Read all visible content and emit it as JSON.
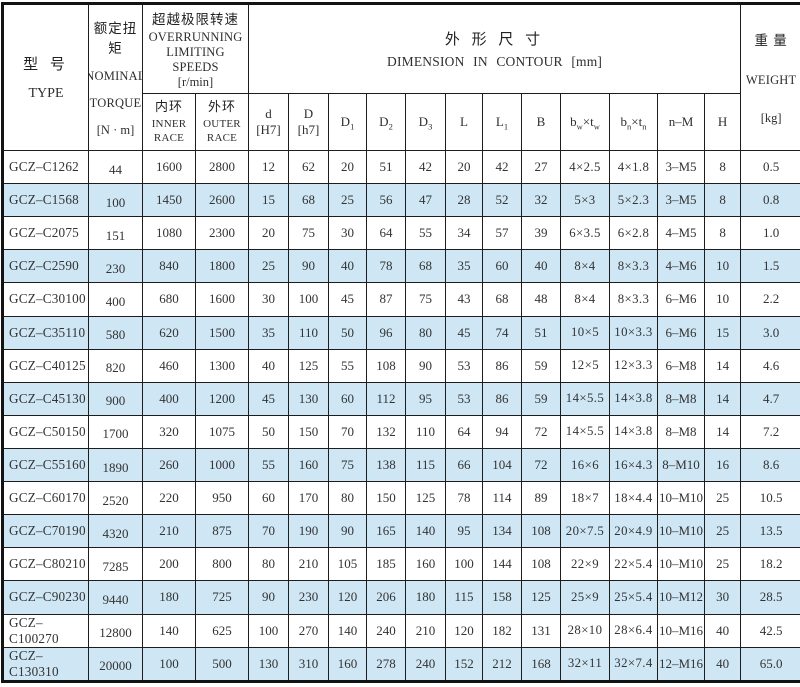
{
  "colors": {
    "band_blue": "#cfe7f5",
    "row_white": "#ffffff",
    "border": "#1d1d1d",
    "text": "#333333"
  },
  "table": {
    "header": {
      "type": {
        "zh": "型 号",
        "en": "TYPE"
      },
      "torque": {
        "zh": "额定扭矩",
        "en1": "NOMINAL",
        "en2": "TORQUE",
        "unit": "[N · m]"
      },
      "speeds": {
        "zh": "超越极限转速",
        "en1": "OVERRUNNING",
        "en2": "LIMITING SPEEDS",
        "unit": "[r/min]"
      },
      "inner_race": {
        "zh": "内环",
        "en1": "INNER",
        "en2": "RACE"
      },
      "outer_race": {
        "zh": "外环",
        "en1": "OUTER",
        "en2": "RACE"
      },
      "dimension": {
        "zh": "外 形 尺 寸",
        "en": "DIMENSION IN CONTOUR [mm]"
      },
      "dim_cols": [
        "d\n[H7]",
        "D\n[h7]",
        "D|1",
        "D|2",
        "D|3",
        "L",
        "L|1",
        "B",
        "b|w|×t|w",
        "b|n|×t|n",
        "n–M",
        "H"
      ],
      "weight": {
        "zh": "重 量",
        "en": "WEIGHT",
        "unit": "[kg]"
      }
    },
    "column_keys": [
      "type",
      "torque",
      "inner-speed",
      "outer-speed",
      "d-h7",
      "d-cap-h7",
      "d1",
      "d2",
      "d3",
      "l",
      "l1",
      "b",
      "bw-tw",
      "bn-tn",
      "n-m",
      "h",
      "weight"
    ],
    "rows": [
      [
        "GCZ–C1262",
        "44",
        "1600",
        "2800",
        "12",
        "62",
        "20",
        "51",
        "42",
        "20",
        "42",
        "27",
        "4×2.5",
        "4×1.8",
        "3–M5",
        "8",
        "0.5"
      ],
      [
        "GCZ–C1568",
        "100",
        "1450",
        "2600",
        "15",
        "68",
        "25",
        "56",
        "47",
        "28",
        "52",
        "32",
        "5×3",
        "5×2.3",
        "3–M5",
        "8",
        "0.8"
      ],
      [
        "GCZ–C2075",
        "151",
        "1080",
        "2300",
        "20",
        "75",
        "30",
        "64",
        "55",
        "34",
        "57",
        "39",
        "6×3.5",
        "6×2.8",
        "4–M5",
        "8",
        "1.0"
      ],
      [
        "GCZ–C2590",
        "230",
        "840",
        "1800",
        "25",
        "90",
        "40",
        "78",
        "68",
        "35",
        "60",
        "40",
        "8×4",
        "8×3.3",
        "4–M6",
        "10",
        "1.5"
      ],
      [
        "GCZ–C30100",
        "400",
        "680",
        "1600",
        "30",
        "100",
        "45",
        "87",
        "75",
        "43",
        "68",
        "48",
        "8×4",
        "8×3.3",
        "6–M6",
        "10",
        "2.2"
      ],
      [
        "GCZ–C35110",
        "580",
        "620",
        "1500",
        "35",
        "110",
        "50",
        "96",
        "80",
        "45",
        "74",
        "51",
        "10×5",
        "10×3.3",
        "6–M6",
        "15",
        "3.0"
      ],
      [
        "GCZ–C40125",
        "820",
        "460",
        "1300",
        "40",
        "125",
        "55",
        "108",
        "90",
        "53",
        "86",
        "59",
        "12×5",
        "12×3.3",
        "6–M8",
        "14",
        "4.6"
      ],
      [
        "GCZ–C45130",
        "900",
        "400",
        "1200",
        "45",
        "130",
        "60",
        "112",
        "95",
        "53",
        "86",
        "59",
        "14×5.5",
        "14×3.8",
        "8–M8",
        "14",
        "4.7"
      ],
      [
        "GCZ–C50150",
        "1700",
        "320",
        "1075",
        "50",
        "150",
        "70",
        "132",
        "110",
        "64",
        "94",
        "72",
        "14×5.5",
        "14×3.8",
        "8–M8",
        "14",
        "7.2"
      ],
      [
        "GCZ–C55160",
        "1890",
        "260",
        "1000",
        "55",
        "160",
        "75",
        "138",
        "115",
        "66",
        "104",
        "72",
        "16×6",
        "16×4.3",
        "8–M10",
        "16",
        "8.6"
      ],
      [
        "GCZ–C60170",
        "2520",
        "220",
        "950",
        "60",
        "170",
        "80",
        "150",
        "125",
        "78",
        "114",
        "89",
        "18×7",
        "18×4.4",
        "10–M10",
        "25",
        "10.5"
      ],
      [
        "GCZ–C70190",
        "4320",
        "210",
        "875",
        "70",
        "190",
        "90",
        "165",
        "140",
        "95",
        "134",
        "108",
        "20×7.5",
        "20×4.9",
        "10–M10",
        "25",
        "13.5"
      ],
      [
        "GCZ–C80210",
        "7285",
        "200",
        "800",
        "80",
        "210",
        "105",
        "185",
        "160",
        "100",
        "144",
        "108",
        "22×9",
        "22×5.4",
        "10–M10",
        "25",
        "18.2"
      ],
      [
        "GCZ–C90230",
        "9440",
        "180",
        "725",
        "90",
        "230",
        "120",
        "206",
        "180",
        "115",
        "158",
        "125",
        "25×9",
        "25×5.4",
        "10–M12",
        "30",
        "28.5"
      ],
      [
        "GCZ–C100270",
        "12800",
        "140",
        "625",
        "100",
        "270",
        "140",
        "240",
        "210",
        "120",
        "182",
        "131",
        "28×10",
        "28×6.4",
        "10–M16",
        "40",
        "42.5"
      ],
      [
        "GCZ–C130310",
        "20000",
        "100",
        "500",
        "130",
        "310",
        "160",
        "278",
        "240",
        "152",
        "212",
        "168",
        "32×11",
        "32×7.4",
        "12–M16",
        "40",
        "65.0"
      ]
    ]
  }
}
